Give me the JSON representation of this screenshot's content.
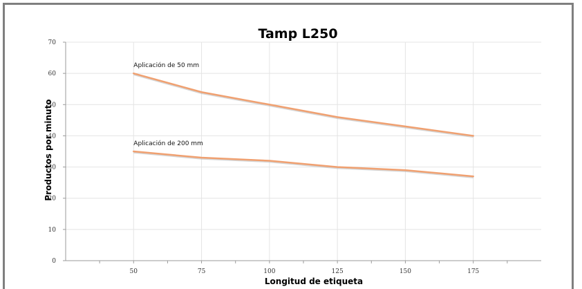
{
  "chart_data": {
    "type": "line",
    "title": "Tamp L250",
    "xlabel": "Longitud de etiqueta",
    "ylabel": "Productos por minuto",
    "x": [
      50,
      75,
      100,
      125,
      150,
      175
    ],
    "xlim": [
      25,
      200
    ],
    "ylim": [
      0,
      70
    ],
    "yticks": [
      0,
      10,
      20,
      30,
      40,
      50,
      60,
      70
    ],
    "grid": true,
    "series": [
      {
        "name": "Aplicación de 50 mm",
        "values": [
          60,
          54,
          50,
          46,
          43,
          40
        ],
        "color": "#f0a070"
      },
      {
        "name": "Aplicación de 200 mm",
        "values": [
          35,
          33,
          32,
          30,
          29,
          27
        ],
        "color": "#f0a070"
      }
    ]
  }
}
